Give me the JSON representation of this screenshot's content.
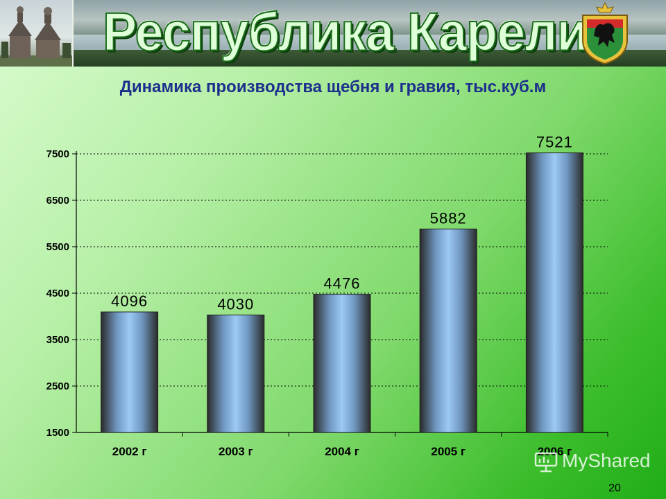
{
  "banner": {
    "title": "Республика Карелия"
  },
  "colors": {
    "title": "#1c2f8c",
    "bar_light": "#9cc9f5",
    "bar_dark": "#2a2a2a",
    "grid": "#000000"
  },
  "chart_data": {
    "type": "bar",
    "title": "Динамика производства щебня и гравия, тыс.куб.м",
    "categories": [
      "2002 г",
      "2003 г",
      "2004 г",
      "2005 г",
      "2006 г"
    ],
    "values": [
      4096,
      4030,
      4476,
      5882,
      7521
    ],
    "ylim": [
      1500,
      7500
    ],
    "yticks": [
      1500,
      2500,
      3500,
      4500,
      5500,
      6500,
      7500
    ],
    "grid": true,
    "legend": "none"
  },
  "footer": {
    "page_number": "20",
    "watermark": "MyShared"
  }
}
